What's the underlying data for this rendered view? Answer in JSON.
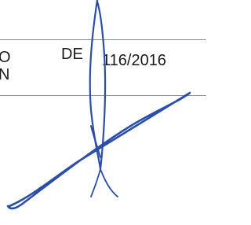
{
  "row": {
    "left_lines": [
      "O",
      "N"
    ],
    "word": "DE",
    "number": "116/2016"
  }
}
